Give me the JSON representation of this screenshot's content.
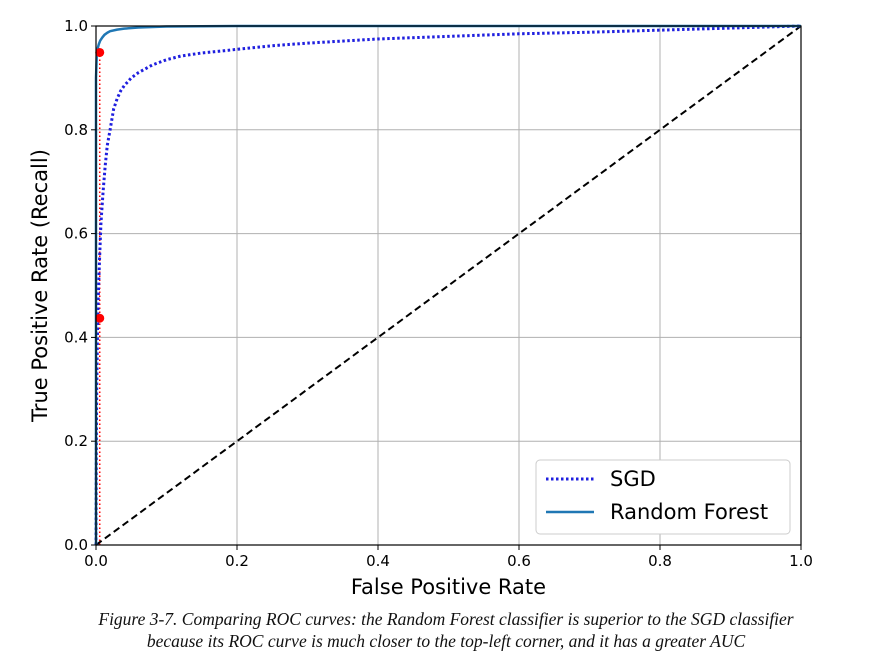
{
  "chart_data": {
    "type": "line",
    "xlabel": "False Positive Rate",
    "ylabel": "True Positive Rate (Recall)",
    "xlim": [
      0,
      1
    ],
    "ylim": [
      0,
      1
    ],
    "xticks": [
      "0.0",
      "0.2",
      "0.4",
      "0.6",
      "0.8",
      "1.0"
    ],
    "yticks": [
      "0.0",
      "0.2",
      "0.4",
      "0.6",
      "0.8",
      "1.0"
    ],
    "grid": true,
    "legend_position": "bottom-right",
    "series": [
      {
        "name": "SGD",
        "style": "dotted",
        "color": "#1f1fdf",
        "x": [
          0,
          0.0005,
          0.001,
          0.002,
          0.003,
          0.005,
          0.007,
          0.01,
          0.013,
          0.016,
          0.02,
          0.025,
          0.03,
          0.035,
          0.04,
          0.05,
          0.06,
          0.08,
          0.1,
          0.12,
          0.15,
          0.2,
          0.25,
          0.3,
          0.4,
          0.5,
          0.6,
          0.7,
          0.8,
          0.9,
          1.0
        ],
        "y": [
          0,
          0.2,
          0.3,
          0.4,
          0.47,
          0.55,
          0.62,
          0.68,
          0.73,
          0.77,
          0.8,
          0.84,
          0.86,
          0.875,
          0.885,
          0.9,
          0.91,
          0.925,
          0.935,
          0.942,
          0.948,
          0.955,
          0.962,
          0.967,
          0.975,
          0.98,
          0.985,
          0.988,
          0.992,
          0.996,
          1.0
        ]
      },
      {
        "name": "Random Forest",
        "style": "solid",
        "color": "#1f77b4",
        "x": [
          0,
          0,
          0.001,
          0.002,
          0.004,
          0.006,
          0.009,
          0.012,
          0.016,
          0.02,
          0.03,
          0.04,
          0.06,
          0.08,
          0.1,
          0.15,
          0.2,
          0.3,
          0.5,
          0.7,
          1.0
        ],
        "y": [
          0,
          0.9,
          0.94,
          0.955,
          0.965,
          0.972,
          0.978,
          0.983,
          0.987,
          0.99,
          0.993,
          0.995,
          0.997,
          0.998,
          0.999,
          0.9995,
          1.0,
          1.0,
          1.0,
          1.0,
          1.0
        ]
      },
      {
        "name": "",
        "style": "dashed",
        "color": "#000000",
        "x": [
          0,
          1
        ],
        "y": [
          0,
          1
        ]
      }
    ],
    "markers": [
      {
        "x": 0.0053,
        "y": 0.949,
        "color": "#ff0000"
      },
      {
        "x": 0.0053,
        "y": 0.437,
        "color": "#ff0000"
      }
    ],
    "reference_lines": [
      {
        "x": 0.0053,
        "y_from": 0,
        "y_to": 0.949,
        "style": "dotted",
        "color": "#ff0000"
      }
    ],
    "legend": [
      "SGD",
      "Random Forest"
    ]
  },
  "caption": {
    "line1": "Figure 3-7. Comparing ROC curves: the Random Forest classifier is superior to the SGD classifier",
    "line2": "because its ROC curve is much closer to the top-left corner, and it has a greater AUC"
  }
}
